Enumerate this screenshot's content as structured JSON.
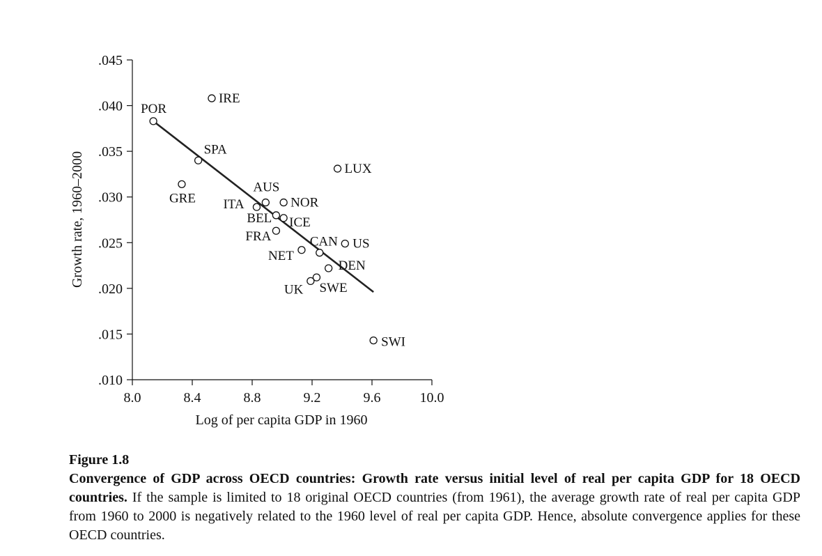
{
  "chart_data": {
    "type": "scatter",
    "xlabel": "Log of per capita GDP in 1960",
    "ylabel": "Growth rate, 1960–2000",
    "xlim": [
      8.0,
      10.0
    ],
    "ylim": [
      0.01,
      0.045
    ],
    "x_ticks": [
      8.0,
      8.4,
      8.8,
      9.2,
      9.6,
      10.0
    ],
    "x_tick_labels": [
      "8.0",
      "8.4",
      "8.8",
      "9.2",
      "9.6",
      "10.0"
    ],
    "y_ticks": [
      0.01,
      0.015,
      0.02,
      0.025,
      0.03,
      0.035,
      0.04,
      0.045
    ],
    "y_tick_labels": [
      ".010",
      ".015",
      ".020",
      ".025",
      ".030",
      ".035",
      ".040",
      ".045"
    ],
    "grid": false,
    "points": [
      {
        "label": "POR",
        "x": 8.14,
        "y": 0.0383
      },
      {
        "label": "IRE",
        "x": 8.53,
        "y": 0.0408
      },
      {
        "label": "SPA",
        "x": 8.44,
        "y": 0.034
      },
      {
        "label": "GRE",
        "x": 8.33,
        "y": 0.0314
      },
      {
        "label": "LUX",
        "x": 9.37,
        "y": 0.0331
      },
      {
        "label": "ITA",
        "x": 8.83,
        "y": 0.0289
      },
      {
        "label": "AUS",
        "x": 8.89,
        "y": 0.0294
      },
      {
        "label": "NOR",
        "x": 9.01,
        "y": 0.0294
      },
      {
        "label": "BEL",
        "x": 8.96,
        "y": 0.028
      },
      {
        "label": "ICE",
        "x": 9.01,
        "y": 0.0277
      },
      {
        "label": "FRA",
        "x": 8.96,
        "y": 0.0263
      },
      {
        "label": "NET",
        "x": 9.13,
        "y": 0.0242
      },
      {
        "label": "CAN",
        "x": 9.25,
        "y": 0.0239
      },
      {
        "label": "US",
        "x": 9.42,
        "y": 0.0249
      },
      {
        "label": "DEN",
        "x": 9.31,
        "y": 0.0222
      },
      {
        "label": "UK",
        "x": 9.19,
        "y": 0.0208
      },
      {
        "label": "SWE",
        "x": 9.23,
        "y": 0.0212
      },
      {
        "label": "SWI",
        "x": 9.61,
        "y": 0.0143
      }
    ],
    "fit_line": {
      "x": [
        8.14,
        9.61
      ],
      "y": [
        0.0383,
        0.0196
      ]
    }
  },
  "caption": {
    "figure_label": "Figure 1.8",
    "title": "Convergence of GDP across OECD countries: Growth rate versus initial level of real per capita GDP for 18 OECD countries.",
    "body": " If the sample is limited to 18 original OECD countries (from 1961), the average growth rate of real per capita GDP from 1960 to 2000 is negatively related to the 1960 level of real per capita GDP. Hence, absolute convergence applies for these OECD countries."
  }
}
